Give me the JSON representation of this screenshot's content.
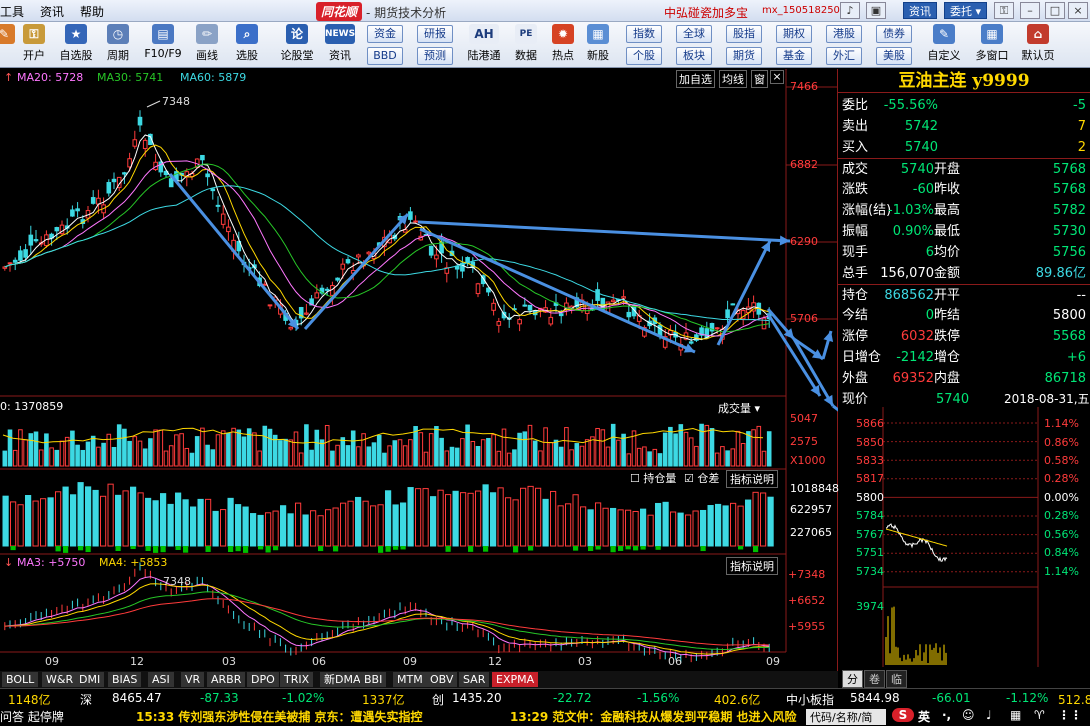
{
  "titlebar": {
    "menu": [
      "工具",
      "资讯",
      "帮助"
    ],
    "brand": "同花顺",
    "title": "- 期货技术分析",
    "account": "中弘碰瓷加多宝",
    "user": "mx_150518250",
    "btn_zixun": "资讯",
    "btn_weituo": "委托 ▾"
  },
  "toolbar": {
    "left": [
      "开户",
      "自选股",
      "周期",
      "F10/F9",
      "画线",
      "选股",
      "论股堂",
      "资讯"
    ],
    "grid1": [
      [
        "资金",
        "研报"
      ],
      [
        "BBD",
        "预测"
      ]
    ],
    "big": [
      "陆港通",
      "数据",
      "热点",
      "新股"
    ],
    "grid2": [
      [
        "指数",
        "全球",
        "股指",
        "期权",
        "港股",
        "债券"
      ],
      [
        "个股",
        "板块",
        "期货",
        "基金",
        "外汇",
        "美股"
      ]
    ],
    "right": [
      "自定义",
      "多窗口",
      "默认页"
    ]
  },
  "chart": {
    "ma_labels": {
      "ma20": "MA20: 5728",
      "ma30": "MA30: 5741",
      "ma60": "MA60: 5879"
    },
    "top_buttons": [
      "加自选",
      "均线",
      "窗"
    ],
    "price_ticks": [
      "7466",
      "6882",
      "6290",
      "5706"
    ],
    "high_mark": "7348",
    "vol_label": "0: 1370859",
    "vol_btn": "成交量",
    "vol_ticks": [
      "5047",
      "2575",
      "X1000"
    ],
    "oi_checks": [
      "持仓量",
      "仓差"
    ],
    "oi_btn": "指标说明",
    "oi_ticks": [
      "1018848",
      "622957",
      "227065"
    ],
    "expma_labels": {
      "ma3": "MA3: +5750",
      "ma4": "MA4: +5853"
    },
    "expma_high": "7348",
    "expma_btn": "指标说明",
    "expma_ticks": [
      "+7348",
      "+6652",
      "+5955"
    ],
    "x_ticks": [
      "09",
      "12",
      "03",
      "06",
      "09",
      "12",
      "03",
      "06",
      "09"
    ],
    "tabs": [
      "BOLL",
      "W&R",
      "DMI",
      "BIAS",
      "ASI",
      "VR",
      "ARBR",
      "DPO",
      "TRIX",
      "新DMA",
      "BBI",
      "MTM",
      "OBV",
      "SAR",
      "EXPMA"
    ]
  },
  "quote": {
    "title": "豆油主连 y9999",
    "rows": [
      {
        "l": "委比",
        "v": "-55.56%",
        "vc": "green",
        "v2": "-5",
        "v2c": "green"
      },
      {
        "l": "卖出",
        "v": "5742",
        "vc": "green",
        "v2": "7",
        "v2c": "yel"
      },
      {
        "l": "买入",
        "v": "5740",
        "vc": "green",
        "v2": "2",
        "v2c": "yel"
      },
      {
        "l": "成交",
        "v": "5740",
        "vc": "green",
        "m": "开盘",
        "v2": "5768",
        "v2c": "green"
      },
      {
        "l": "涨跌",
        "v": "-60",
        "vc": "green",
        "m": "昨收",
        "v2": "5768",
        "v2c": "green"
      },
      {
        "l": "涨幅(结)",
        "v": "-1.03%",
        "vc": "green",
        "m": "最高",
        "v2": "5782",
        "v2c": "green"
      },
      {
        "l": "振幅",
        "v": "0.90%",
        "vc": "green",
        "m": "最低",
        "v2": "5730",
        "v2c": "green"
      },
      {
        "l": "现手",
        "v": "6",
        "vc": "green",
        "m": "均价",
        "v2": "5756",
        "v2c": "green"
      },
      {
        "l": "总手",
        "v": "156,070",
        "vc": "wht",
        "m": "金额",
        "v2": "89.86亿",
        "v2c": "cyan"
      },
      {
        "l": "持仓",
        "v": "868562",
        "vc": "cyan",
        "m": "开平",
        "v2": "--",
        "v2c": "wht"
      },
      {
        "l": "今结",
        "v": "0",
        "vc": "green",
        "m": "昨结",
        "v2": "5800",
        "v2c": "wht"
      },
      {
        "l": "涨停",
        "v": "6032",
        "vc": "red",
        "m": "跌停",
        "v2": "5568",
        "v2c": "green"
      },
      {
        "l": "日增仓",
        "v": "-2142",
        "vc": "green",
        "m": "增仓",
        "v2": "+6",
        "v2c": "green"
      },
      {
        "l": "外盘",
        "v": "69352",
        "vc": "red",
        "m": "内盘",
        "v2": "86718",
        "v2c": "green"
      }
    ],
    "now_label": "现价",
    "now_value": "5740",
    "date": "2018-08-31,五",
    "mini_left": [
      "5866",
      "5850",
      "5833",
      "5817",
      "5800",
      "5784",
      "5767",
      "5751",
      "5734",
      "3974"
    ],
    "mini_right": [
      "1.14%",
      "0.86%",
      "0.58%",
      "0.28%",
      "0.00%",
      "0.28%",
      "0.56%",
      "0.84%",
      "1.14%"
    ],
    "tabs": [
      "分",
      "卷",
      "临"
    ]
  },
  "bottom": {
    "r1": [
      [
        "1148亿",
        "yel"
      ],
      [
        "深",
        "wht"
      ],
      [
        "8465.47",
        "wht"
      ],
      [
        "-87.33",
        "green"
      ],
      [
        "-1.02%",
        "green"
      ],
      [
        "1337亿",
        "yel"
      ],
      [
        "创",
        "wht"
      ],
      [
        "1435.20",
        "wht"
      ],
      [
        "-22.72",
        "green"
      ],
      [
        "-1.56%",
        "green"
      ],
      [
        "402.6亿",
        "yel"
      ],
      [
        "中小板指",
        "wht"
      ],
      [
        "5844.98",
        "wht"
      ],
      [
        "-66.01",
        "green"
      ],
      [
        "-1.12%",
        "green"
      ],
      [
        "512.8亿",
        "yel"
      ]
    ],
    "news1": "问答 起停牌",
    "news2": "15:33 传刘强东涉性侵在美被捕 京东：遭遇失实指控",
    "news3": "13:29 范文仲：金融科技从爆发到平稳期 也进入风险",
    "code": "代码/名称/简",
    "ime": "英"
  }
}
